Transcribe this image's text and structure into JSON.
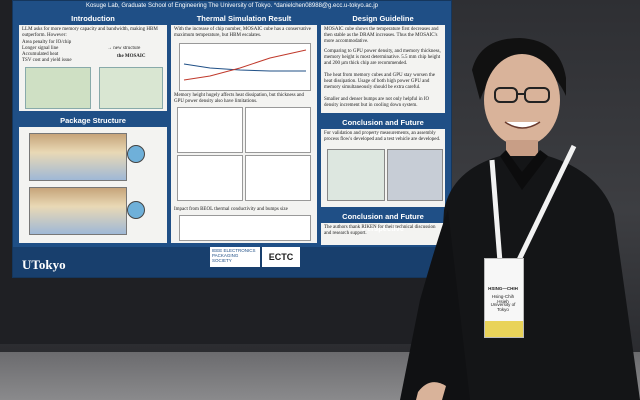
{
  "poster": {
    "header": "Kosuge Lab, Graduate School of Engineering The University of Tokyo. *danielchen08988@g.ecc.u-tokyo.ac.jp",
    "sections": {
      "introduction": {
        "title": "Introduction",
        "text": "LLM asks for more memory capacity and bandwidth, making HBM outperform. However:",
        "bullets": [
          "Area penalty for IO/chip",
          "Longer signal line",
          "Accumulated heat",
          "TSV cost and yield issue"
        ],
        "new_structure": "→ new structure",
        "mosaic": "the MOSAIC"
      },
      "thermal": {
        "title": "Thermal Simulation Result",
        "text": "With the increase of chip number, MOSAIC cube has a conservative maximum temperature, but HBM escalates.",
        "text2": "Memory height hugely affects heat dissipation, but thickness and GPU power density also have limitations.",
        "text3": "Impact from BEOL thermal conductivity and bumps size"
      },
      "design": {
        "title": "Design Guideline",
        "items": [
          "MOSAIC cube shows the temperature first decreases and then stable as the DRAM increases. Thus the MOSAIC's more accommodative.",
          "Comparing to GPU power density, and memory thickness, memory height is most determinative. 5.5 mm chip height and 200 µm thick chip are recommended.",
          "The heat from memory cubes and GPU stay worsen the heat dissipation. Usage of both high power GPU and memory simultaneously should be extra careful.",
          "Smaller and denser bumps are not only helpful in IO density increment but in cooling down system."
        ]
      },
      "package": {
        "title": "Package Structure"
      },
      "conclusion1": {
        "title": "Conclusion and Future Perspective",
        "text": "For validation and property measurements, an assembly process flow's developed and a test vehicle are developed."
      },
      "conclusion2": {
        "title": "Conclusion and Future Perspective",
        "text": "The authors thank RIKEN for their technical discussion and research support."
      }
    },
    "footer": {
      "university": "UTokyo",
      "ieee": "IEEE ELECTRONICS PACKAGING SOCIETY",
      "ectc": "ECTC"
    }
  },
  "badge": {
    "name": "HSING—CHIH",
    "sub": "Hsing-Chih Hsieh",
    "org": "University of Tokyo"
  },
  "colors": {
    "poster_blue": "#1f4f86",
    "badge_accent": "#e9d35a"
  }
}
